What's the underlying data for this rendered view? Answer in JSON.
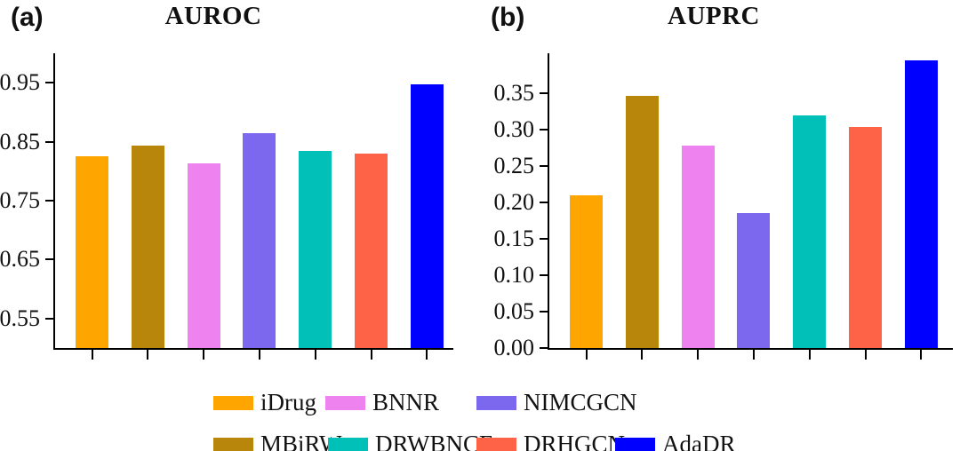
{
  "figure": {
    "panel_a_label": "(a)",
    "panel_b_label": "(b)"
  },
  "methods": [
    {
      "name": "iDrug",
      "color": "#FFA500"
    },
    {
      "name": "MBiRW",
      "color": "#B8860B"
    },
    {
      "name": "BNNR",
      "color": "#EE82EE"
    },
    {
      "name": "NIMCGCN",
      "color": "#7B68EE"
    },
    {
      "name": "DRWBNCF",
      "color": "#00C0B8"
    },
    {
      "name": "DRHGCN",
      "color": "#FF6347"
    },
    {
      "name": "AdaDR",
      "color": "#0000FF"
    }
  ],
  "chart_data": [
    {
      "type": "bar",
      "panel": "a",
      "title": "AUROC",
      "categories": [
        "iDrug",
        "MBiRW",
        "BNNR",
        "NIMCGCN",
        "DRWBNCF",
        "DRHGCN",
        "AdaDR"
      ],
      "values": [
        0.826,
        0.843,
        0.814,
        0.864,
        0.834,
        0.83,
        0.948
      ],
      "bar_colors": [
        "#FFA500",
        "#B8860B",
        "#EE82EE",
        "#7B68EE",
        "#00C0B8",
        "#FF6347",
        "#0000FF"
      ],
      "xlabel": "",
      "ylabel": "",
      "ylim": [
        0.5,
        1.0
      ],
      "yticks": [
        0.95,
        0.85,
        0.75,
        0.65,
        0.55
      ],
      "ytick_labels": [
        "0.95",
        "0.85",
        "0.75",
        "0.65",
        "0.55"
      ],
      "xtick_labels": [
        "",
        "",
        "",
        "",
        "",
        "",
        ""
      ],
      "grid": false,
      "legend_position": "below-figure-shared"
    },
    {
      "type": "bar",
      "panel": "b",
      "title": "AUPRC",
      "categories": [
        "iDrug",
        "MBiRW",
        "BNNR",
        "NIMCGCN",
        "DRWBNCF",
        "DRHGCN",
        "AdaDR"
      ],
      "values": [
        0.21,
        0.346,
        0.278,
        0.186,
        0.32,
        0.304,
        0.395
      ],
      "bar_colors": [
        "#FFA500",
        "#B8860B",
        "#EE82EE",
        "#7B68EE",
        "#00C0B8",
        "#FF6347",
        "#0000FF"
      ],
      "xlabel": "",
      "ylabel": "",
      "ylim": [
        0.0,
        0.405
      ],
      "yticks": [
        0.35,
        0.3,
        0.25,
        0.2,
        0.15,
        0.1,
        0.05,
        0.0
      ],
      "ytick_labels": [
        "0.35",
        "0.30",
        "0.25",
        "0.20",
        "0.15",
        "0.10",
        "0.05",
        "0.00"
      ],
      "xtick_labels": [
        "",
        "",
        "",
        "",
        "",
        "",
        ""
      ],
      "grid": false,
      "legend_position": "below-figure-shared"
    }
  ],
  "legend": {
    "rows": [
      [
        "iDrug",
        "BNNR",
        "NIMCGCN"
      ],
      [
        "MBiRW",
        "DRWBNCF",
        "DRHGCN",
        "AdaDR"
      ]
    ]
  }
}
